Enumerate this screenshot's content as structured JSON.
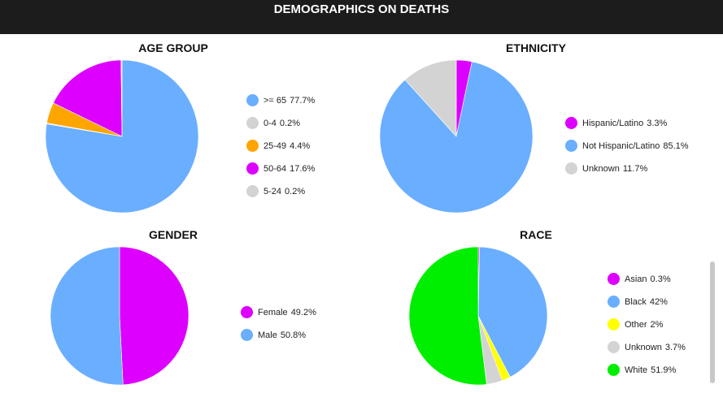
{
  "header": {
    "title": "DEMOGRAPHICS ON DEATHS"
  },
  "chart_data": [
    {
      "type": "pie",
      "title": "AGE GROUP",
      "slices": [
        {
          "label": ">= 65",
          "value": 77.7,
          "display": "77.7%",
          "color": "#6aaeff"
        },
        {
          "label": "0-4",
          "value": 0.2,
          "display": "0.2%",
          "color": "#d3d3d3"
        },
        {
          "label": "25-49",
          "value": 4.4,
          "display": "4.4%",
          "color": "#ffa500"
        },
        {
          "label": "50-64",
          "value": 17.6,
          "display": "17.6%",
          "color": "#dd00ff"
        },
        {
          "label": "5-24",
          "value": 0.2,
          "display": "0.2%",
          "color": "#d3d3d3"
        }
      ],
      "legend_position": "right"
    },
    {
      "type": "pie",
      "title": "ETHNICITY",
      "slices": [
        {
          "label": "Hispanic/Latino",
          "value": 3.3,
          "display": "3.3%",
          "color": "#dd00ff"
        },
        {
          "label": "Not Hispanic/Latino",
          "value": 85.1,
          "display": "85.1%",
          "color": "#6aaeff"
        },
        {
          "label": "Unknown",
          "value": 11.7,
          "display": "11.7%",
          "color": "#d3d3d3"
        }
      ],
      "legend_position": "right"
    },
    {
      "type": "pie",
      "title": "GENDER",
      "slices": [
        {
          "label": "Female",
          "value": 49.2,
          "display": "49.2%",
          "color": "#dd00ff"
        },
        {
          "label": "Male",
          "value": 50.8,
          "display": "50.8%",
          "color": "#6aaeff"
        }
      ],
      "legend_position": "right"
    },
    {
      "type": "pie",
      "title": "RACE",
      "slices": [
        {
          "label": "Asian",
          "value": 0.3,
          "display": "0.3%",
          "color": "#dd00ff"
        },
        {
          "label": "Black",
          "value": 42,
          "display": "42%",
          "color": "#6aaeff"
        },
        {
          "label": "Other",
          "value": 2,
          "display": "2%",
          "color": "#ffff00"
        },
        {
          "label": "Unknown",
          "value": 3.7,
          "display": "3.7%",
          "color": "#d3d3d3"
        },
        {
          "label": "White",
          "value": 51.9,
          "display": "51.9%",
          "color": "#00ee00"
        }
      ],
      "legend_position": "right"
    }
  ]
}
